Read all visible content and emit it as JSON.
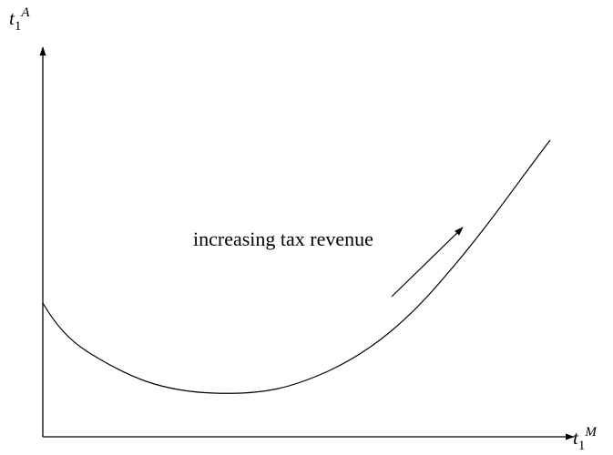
{
  "y_axis_label": {
    "base": "t",
    "sub": "1",
    "sup": "A"
  },
  "x_axis_label": {
    "base": "t",
    "sub": "1",
    "sup": "M"
  },
  "annotation": "increasing tax revenue",
  "colors": {
    "ink": "#000000",
    "background": "#ffffff"
  }
}
